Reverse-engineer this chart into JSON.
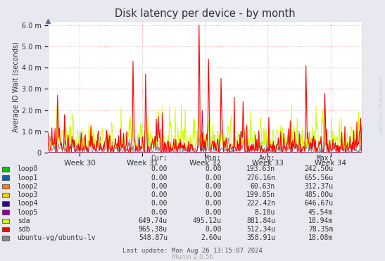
{
  "title": "Disk latency per device - by month",
  "ylabel": "Average IO Wait (seconds)",
  "background_color": "#E8E8F0",
  "plot_bg_color": "#FFFFFF",
  "ytick_labels": [
    "0",
    "1.0 m",
    "2.0 m",
    "3.0 m",
    "4.0 m",
    "5.0 m",
    "6.0 m"
  ],
  "ytick_values": [
    0.0,
    0.001,
    0.002,
    0.003,
    0.004,
    0.005,
    0.006
  ],
  "xtick_labels": [
    "Week 30",
    "Week 31",
    "Week 32",
    "Week 33",
    "Week 34"
  ],
  "xtick_positions": [
    0.1,
    0.3,
    0.5,
    0.7,
    0.9
  ],
  "xmin": 0.0,
  "xmax": 1.0,
  "ymin": 0.0,
  "ymax": 0.0062,
  "legend_items": [
    {
      "label": "loop0",
      "color": "#00CC00"
    },
    {
      "label": "loop1",
      "color": "#0066B3"
    },
    {
      "label": "loop2",
      "color": "#FF8000"
    },
    {
      "label": "loop3",
      "color": "#FFCC00"
    },
    {
      "label": "loop4",
      "color": "#330099"
    },
    {
      "label": "loop5",
      "color": "#990099"
    },
    {
      "label": "sda",
      "color": "#CCFF00"
    },
    {
      "label": "sdb",
      "color": "#FF0000"
    },
    {
      "label": "ubuntu-vg/ubuntu-lv",
      "color": "#888888"
    }
  ],
  "legend_headers": [
    "Cur:",
    "Min:",
    "Avg:",
    "Max:"
  ],
  "legend_cols": [
    [
      "0.00",
      "0.00",
      "0.00",
      "0.00",
      "0.00",
      "0.00",
      "649.74u",
      "965.38u",
      "548.87u"
    ],
    [
      "0.00",
      "0.00",
      "0.00",
      "0.00",
      "0.00",
      "0.00",
      "495.12u",
      "0.00",
      "2.60u"
    ],
    [
      "193.63n",
      "276.16n",
      "60.63n",
      "199.85n",
      "222.42n",
      "8.10u",
      "881.84u",
      "512.34u",
      "358.91u"
    ],
    [
      "242.50u",
      "655.56u",
      "312.37u",
      "485.00u",
      "646.67u",
      "45.54m",
      "18.94m",
      "78.35m",
      "18.08m"
    ]
  ],
  "munin_version": "Munin 2.0.56",
  "last_update": "Last update: Mon Aug 26 13:15:07 2024",
  "watermark": "RRDTOOL / TOBI OETIKER"
}
